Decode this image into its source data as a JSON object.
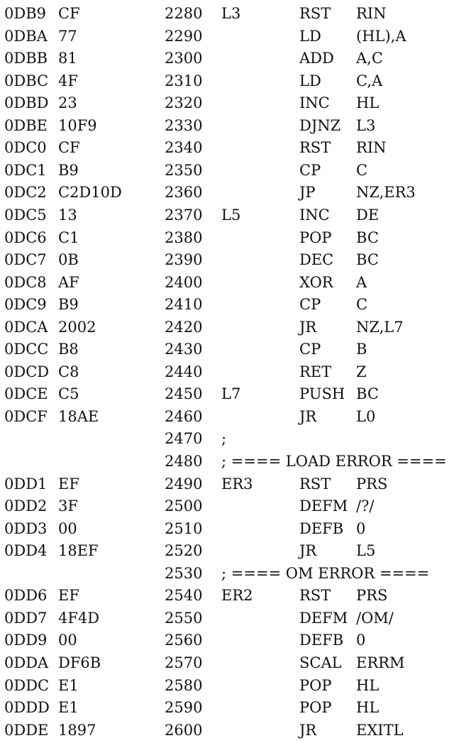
{
  "listing": {
    "rows": [
      {
        "addr": "0DB9",
        "code": "CF",
        "line": "2280",
        "label": "L3",
        "op": "RST",
        "operand": "RIN",
        "comment": ""
      },
      {
        "addr": "0DBA",
        "code": "77",
        "line": "2290",
        "label": "",
        "op": "LD",
        "operand": "(HL),A",
        "comment": ""
      },
      {
        "addr": "0DBB",
        "code": "81",
        "line": "2300",
        "label": "",
        "op": "ADD",
        "operand": "A,C",
        "comment": ""
      },
      {
        "addr": "0DBC",
        "code": "4F",
        "line": "2310",
        "label": "",
        "op": "LD",
        "operand": "C,A",
        "comment": ""
      },
      {
        "addr": "0DBD",
        "code": "23",
        "line": "2320",
        "label": "",
        "op": "INC",
        "operand": "HL",
        "comment": ""
      },
      {
        "addr": "0DBE",
        "code": "10F9",
        "line": "2330",
        "label": "",
        "op": "DJNZ",
        "operand": "L3",
        "comment": ""
      },
      {
        "addr": "0DC0",
        "code": "CF",
        "line": "2340",
        "label": "",
        "op": "RST",
        "operand": "RIN",
        "comment": ""
      },
      {
        "addr": "0DC1",
        "code": "B9",
        "line": "2350",
        "label": "",
        "op": "CP",
        "operand": "C",
        "comment": ""
      },
      {
        "addr": "0DC2",
        "code": "C2D10D",
        "line": "2360",
        "label": "",
        "op": "JP",
        "operand": "NZ,ER3",
        "comment": ""
      },
      {
        "addr": "0DC5",
        "code": "13",
        "line": "2370",
        "label": "L5",
        "op": "INC",
        "operand": "DE",
        "comment": ""
      },
      {
        "addr": "0DC6",
        "code": "C1",
        "line": "2380",
        "label": "",
        "op": "POP",
        "operand": "BC",
        "comment": ""
      },
      {
        "addr": "0DC7",
        "code": "0B",
        "line": "2390",
        "label": "",
        "op": "DEC",
        "operand": "BC",
        "comment": ""
      },
      {
        "addr": "0DC8",
        "code": "AF",
        "line": "2400",
        "label": "",
        "op": "XOR",
        "operand": "A",
        "comment": ""
      },
      {
        "addr": "0DC9",
        "code": "B9",
        "line": "2410",
        "label": "",
        "op": "CP",
        "operand": "C",
        "comment": ""
      },
      {
        "addr": "0DCA",
        "code": "2002",
        "line": "2420",
        "label": "",
        "op": "JR",
        "operand": "NZ,L7",
        "comment": ""
      },
      {
        "addr": "0DCC",
        "code": "B8",
        "line": "2430",
        "label": "",
        "op": "CP",
        "operand": "B",
        "comment": ""
      },
      {
        "addr": "0DCD",
        "code": "C8",
        "line": "2440",
        "label": "",
        "op": "RET",
        "operand": "Z",
        "comment": ""
      },
      {
        "addr": "0DCE",
        "code": "C5",
        "line": "2450",
        "label": "L7",
        "op": "PUSH",
        "operand": "BC",
        "comment": ""
      },
      {
        "addr": "0DCF",
        "code": "18AE",
        "line": "2460",
        "label": "",
        "op": "JR",
        "operand": "L0",
        "comment": ""
      },
      {
        "addr": "",
        "code": "",
        "line": "2470",
        "label": "",
        "op": "",
        "operand": "",
        "comment": ";"
      },
      {
        "addr": "",
        "code": "",
        "line": "2480",
        "label": "",
        "op": "",
        "operand": "",
        "comment": "; ==== LOAD ERROR ===="
      },
      {
        "addr": "0DD1",
        "code": "EF",
        "line": "2490",
        "label": "ER3",
        "op": "RST",
        "operand": "PRS",
        "comment": ""
      },
      {
        "addr": "0DD2",
        "code": "3F",
        "line": "2500",
        "label": "",
        "op": "DEFM",
        "operand": "/?/",
        "comment": ""
      },
      {
        "addr": "0DD3",
        "code": "00",
        "line": "2510",
        "label": "",
        "op": "DEFB",
        "operand": "0",
        "comment": ""
      },
      {
        "addr": "0DD4",
        "code": "18EF",
        "line": "2520",
        "label": "",
        "op": "JR",
        "operand": "L5",
        "comment": ""
      },
      {
        "addr": "",
        "code": "",
        "line": "2530",
        "label": "",
        "op": "",
        "operand": "",
        "comment": "; ==== OM ERROR ===="
      },
      {
        "addr": "0DD6",
        "code": "EF",
        "line": "2540",
        "label": "ER2",
        "op": "RST",
        "operand": "PRS",
        "comment": ""
      },
      {
        "addr": "0DD7",
        "code": "4F4D",
        "line": "2550",
        "label": "",
        "op": "DEFM",
        "operand": "/OM/",
        "comment": ""
      },
      {
        "addr": "0DD9",
        "code": "00",
        "line": "2560",
        "label": "",
        "op": "DEFB",
        "operand": "0",
        "comment": ""
      },
      {
        "addr": "0DDA",
        "code": "DF6B",
        "line": "2570",
        "label": "",
        "op": "SCAL",
        "operand": "ERRM",
        "comment": ""
      },
      {
        "addr": "0DDC",
        "code": "E1",
        "line": "2580",
        "label": "",
        "op": "POP",
        "operand": "HL",
        "comment": ""
      },
      {
        "addr": "0DDD",
        "code": "E1",
        "line": "2590",
        "label": "",
        "op": "POP",
        "operand": "HL",
        "comment": ""
      },
      {
        "addr": "0DDE",
        "code": "1897",
        "line": "2600",
        "label": "",
        "op": "JR",
        "operand": "EXITL",
        "comment": ""
      }
    ]
  }
}
